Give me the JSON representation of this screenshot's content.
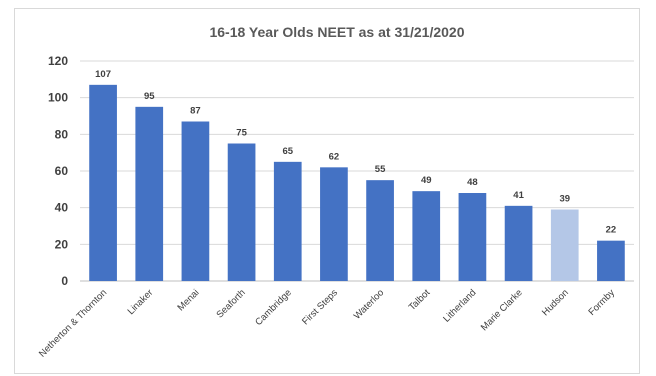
{
  "chart_data": {
    "type": "bar",
    "title": "16-18 Year Olds NEET as at 31/21/2020",
    "categories": [
      "Netherton & Thornton",
      "Linaker",
      "Menai",
      "Seaforth",
      "Cambridge",
      "First Steps",
      "Waterloo",
      "Talbot",
      "Litherland",
      "Marie Clarke",
      "Hudson",
      "Formby"
    ],
    "values": [
      107,
      95,
      87,
      75,
      65,
      62,
      55,
      49,
      48,
      41,
      39,
      22
    ],
    "xlabel": "",
    "ylabel": "",
    "ylim": [
      0,
      120
    ],
    "yticks": [
      0,
      20,
      40,
      60,
      80,
      100,
      120
    ],
    "grid": true,
    "legend": "none",
    "colors": {
      "bar": "#4472c4",
      "highlight": "#b4c7e7",
      "highlight_index": 10
    }
  }
}
